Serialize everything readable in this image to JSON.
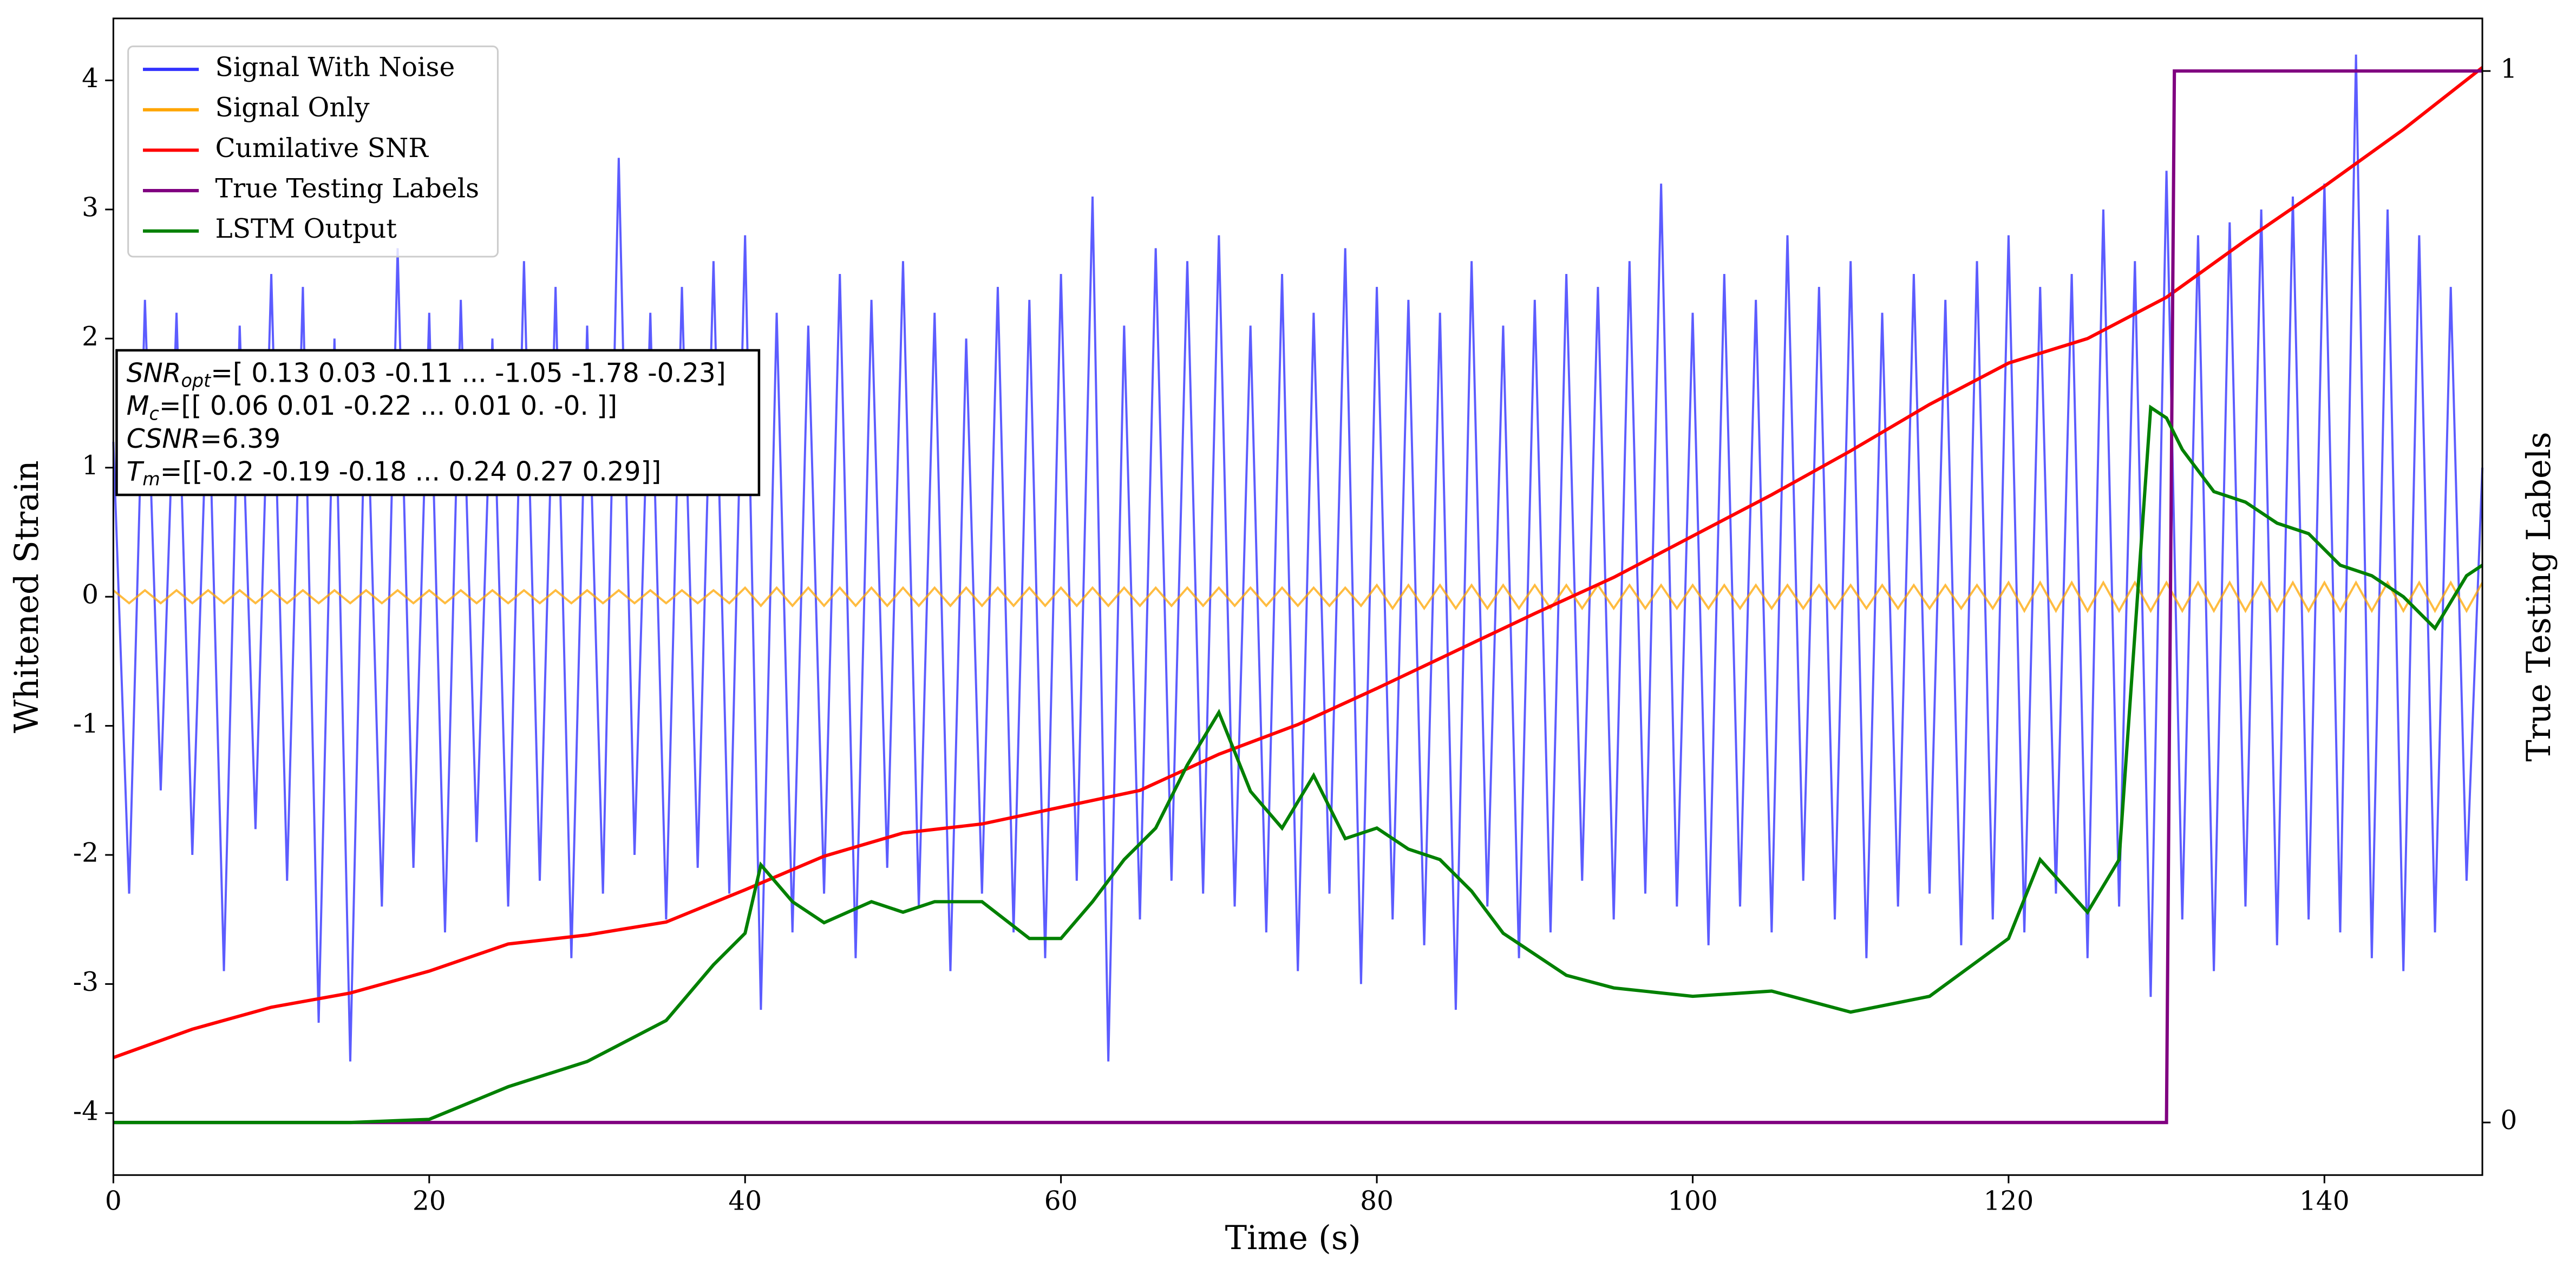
{
  "chart_data": {
    "type": "line",
    "xlabel": "Time (s)",
    "ylabel": "Whitened Strain",
    "y2label": "True Testing Labels",
    "xlim": [
      0,
      150
    ],
    "xticks": [
      0,
      20,
      40,
      60,
      80,
      100,
      120,
      140
    ],
    "ylim": [
      -4.48,
      4.48
    ],
    "yticks": [
      -4,
      -3,
      -2,
      -1,
      0,
      1,
      2,
      3,
      4
    ],
    "y2lim": [
      -0.05,
      1.05
    ],
    "y2ticks": [
      0,
      1
    ],
    "legend": "upper left",
    "annotation": [
      {
        "label": "SNR",
        "sub": "opt",
        "text": "=[ 0.13  0.03 -0.11 ... -1.05 -1.78 -0.23]"
      },
      {
        "label": "M",
        "sub": "c",
        "text": "=[[ 0.06  0.01 -0.22 ...  0.01  0.   -0.  ]]"
      },
      {
        "label": "CSNR",
        "text": "=6.39"
      },
      {
        "label": "T",
        "sub": "m",
        "text": "=[[-0.2  -0.19 -0.18 ...  0.24  0.27  0.29]]"
      }
    ],
    "series": [
      {
        "name": "Signal With Noise",
        "color": "#3333ff",
        "x": [
          0,
          1,
          2,
          3,
          4,
          5,
          6,
          7,
          8,
          9,
          10,
          11,
          12,
          13,
          14,
          15,
          16,
          17,
          18,
          19,
          20,
          21,
          22,
          23,
          24,
          25,
          26,
          27,
          28,
          29,
          30,
          31,
          32,
          33,
          34,
          35,
          36,
          37,
          38,
          39,
          40,
          41,
          42,
          43,
          44,
          45,
          46,
          47,
          48,
          49,
          50,
          51,
          52,
          53,
          54,
          55,
          56,
          57,
          58,
          59,
          60,
          61,
          62,
          63,
          64,
          65,
          66,
          67,
          68,
          69,
          70,
          71,
          72,
          73,
          74,
          75,
          76,
          77,
          78,
          79,
          80,
          81,
          82,
          83,
          84,
          85,
          86,
          87,
          88,
          89,
          90,
          91,
          92,
          93,
          94,
          95,
          96,
          97,
          98,
          99,
          100,
          101,
          102,
          103,
          104,
          105,
          106,
          107,
          108,
          109,
          110,
          111,
          112,
          113,
          114,
          115,
          116,
          117,
          118,
          119,
          120,
          121,
          122,
          123,
          124,
          125,
          126,
          127,
          128,
          129,
          130,
          131,
          132,
          133,
          134,
          135,
          136,
          137,
          138,
          139,
          140,
          141,
          142,
          143,
          144,
          145,
          146,
          147,
          148,
          149,
          150
        ],
        "values": [
          1.2,
          -2.3,
          2.3,
          -1.5,
          2.2,
          -2.0,
          1.8,
          -2.9,
          2.1,
          -1.8,
          2.5,
          -2.2,
          2.4,
          -3.3,
          2.0,
          -3.6,
          1.9,
          -2.4,
          2.7,
          -2.1,
          2.2,
          -2.6,
          2.3,
          -1.9,
          2.0,
          -2.4,
          2.6,
          -2.2,
          2.4,
          -2.8,
          2.1,
          -2.3,
          3.4,
          -2.0,
          2.2,
          -2.5,
          2.4,
          -2.1,
          2.6,
          -2.3,
          2.8,
          -3.2,
          2.2,
          -2.6,
          2.1,
          -2.3,
          2.5,
          -2.8,
          2.3,
          -2.1,
          2.6,
          -2.4,
          2.2,
          -2.9,
          2.0,
          -2.3,
          2.4,
          -2.6,
          2.3,
          -2.8,
          2.5,
          -2.2,
          3.1,
          -3.6,
          2.1,
          -2.5,
          2.7,
          -2.2,
          2.6,
          -2.3,
          2.8,
          -2.4,
          2.1,
          -2.6,
          2.5,
          -2.9,
          2.2,
          -2.3,
          2.7,
          -3.0,
          2.4,
          -2.5,
          2.3,
          -2.7,
          2.2,
          -3.2,
          2.6,
          -2.4,
          2.1,
          -2.8,
          2.3,
          -2.6,
          2.5,
          -2.2,
          2.4,
          -2.5,
          2.6,
          -2.3,
          3.2,
          -2.4,
          2.2,
          -2.7,
          2.5,
          -2.4,
          2.3,
          -2.6,
          2.8,
          -2.2,
          2.4,
          -2.5,
          2.6,
          -2.8,
          2.2,
          -2.4,
          2.5,
          -2.3,
          2.3,
          -2.7,
          2.6,
          -2.5,
          2.8,
          -2.6,
          2.4,
          -2.3,
          2.5,
          -2.8,
          3.0,
          -2.4,
          2.6,
          -3.1,
          3.3,
          -2.5,
          2.8,
          -2.9,
          2.9,
          -2.4,
          3.0,
          -2.7,
          3.1,
          -2.5,
          3.2,
          -2.6,
          4.2,
          -2.8,
          3.0,
          -2.9,
          2.8,
          -2.6,
          2.4,
          -2.2,
          1.0
        ]
      },
      {
        "name": "Signal Only",
        "color": "orange",
        "x": [
          0,
          1,
          2,
          3,
          4,
          5,
          6,
          7,
          8,
          9,
          10,
          11,
          12,
          13,
          14,
          15,
          16,
          17,
          18,
          19,
          20,
          21,
          22,
          23,
          24,
          25,
          26,
          27,
          28,
          29,
          30,
          31,
          32,
          33,
          34,
          35,
          36,
          37,
          38,
          39,
          40,
          41,
          42,
          43,
          44,
          45,
          46,
          47,
          48,
          49,
          50,
          51,
          52,
          53,
          54,
          55,
          56,
          57,
          58,
          59,
          60,
          61,
          62,
          63,
          64,
          65,
          66,
          67,
          68,
          69,
          70,
          71,
          72,
          73,
          74,
          75,
          76,
          77,
          78,
          79,
          80,
          81,
          82,
          83,
          84,
          85,
          86,
          87,
          88,
          89,
          90,
          91,
          92,
          93,
          94,
          95,
          96,
          97,
          98,
          99,
          100,
          101,
          102,
          103,
          104,
          105,
          106,
          107,
          108,
          109,
          110,
          111,
          112,
          113,
          114,
          115,
          116,
          117,
          118,
          119,
          120,
          121,
          122,
          123,
          124,
          125,
          126,
          127,
          128,
          129,
          130,
          131,
          132,
          133,
          134,
          135,
          136,
          137,
          138,
          139,
          140,
          141,
          142,
          143,
          144,
          145,
          146,
          147,
          148,
          149,
          150
        ],
        "values": [
          0.05,
          -0.05,
          0.05,
          -0.05,
          0.05,
          -0.05,
          0.05,
          -0.05,
          0.05,
          -0.05,
          0.05,
          -0.05,
          0.05,
          -0.05,
          0.05,
          -0.05,
          0.05,
          -0.05,
          0.05,
          -0.05,
          0.05,
          -0.05,
          0.05,
          -0.05,
          0.05,
          -0.05,
          0.05,
          -0.05,
          0.05,
          -0.05,
          0.05,
          -0.05,
          0.05,
          -0.05,
          0.05,
          -0.05,
          0.05,
          -0.05,
          0.05,
          -0.05,
          0.07,
          -0.07,
          0.07,
          -0.07,
          0.07,
          -0.07,
          0.07,
          -0.07,
          0.07,
          -0.07,
          0.07,
          -0.07,
          0.07,
          -0.07,
          0.07,
          -0.07,
          0.07,
          -0.07,
          0.07,
          -0.07,
          0.07,
          -0.07,
          0.07,
          -0.07,
          0.07,
          -0.07,
          0.07,
          -0.07,
          0.07,
          -0.07,
          0.07,
          -0.07,
          0.07,
          -0.07,
          0.07,
          -0.07,
          0.07,
          -0.07,
          0.07,
          -0.07,
          0.09,
          -0.09,
          0.09,
          -0.09,
          0.09,
          -0.09,
          0.09,
          -0.09,
          0.09,
          -0.09,
          0.09,
          -0.09,
          0.09,
          -0.09,
          0.09,
          -0.09,
          0.09,
          -0.09,
          0.09,
          -0.09,
          0.09,
          -0.09,
          0.09,
          -0.09,
          0.09,
          -0.09,
          0.09,
          -0.09,
          0.09,
          -0.09,
          0.09,
          -0.09,
          0.09,
          -0.09,
          0.09,
          -0.09,
          0.09,
          -0.09,
          0.09,
          -0.09,
          0.11,
          -0.11,
          0.11,
          -0.11,
          0.11,
          -0.11,
          0.11,
          -0.11,
          0.11,
          -0.11,
          0.11,
          -0.11,
          0.11,
          -0.11,
          0.11,
          -0.11,
          0.11,
          -0.11,
          0.11,
          -0.11,
          0.11,
          -0.11,
          0.11,
          -0.11,
          0.11,
          -0.11,
          0.11,
          -0.11,
          0.11,
          -0.11,
          0.11
        ]
      },
      {
        "name": "Cumilative SNR",
        "color": "red",
        "x": [
          0,
          5,
          10,
          15,
          20,
          25,
          30,
          35,
          40,
          45,
          50,
          55,
          60,
          65,
          70,
          75,
          80,
          85,
          90,
          95,
          100,
          105,
          110,
          115,
          120,
          125,
          130,
          135,
          140,
          145,
          150
        ],
        "values": [
          -3.57,
          -3.35,
          -3.18,
          -3.07,
          -2.9,
          -2.69,
          -2.62,
          -2.52,
          -2.27,
          -2.01,
          -1.83,
          -1.76,
          -1.63,
          -1.5,
          -1.22,
          -0.99,
          -0.71,
          -0.42,
          -0.13,
          0.15,
          0.47,
          0.79,
          1.13,
          1.49,
          1.81,
          2.0,
          2.32,
          2.76,
          3.18,
          3.62,
          4.1
        ]
      },
      {
        "name": "True Testing Labels",
        "color": "purple",
        "axis": "y2",
        "x": [
          0,
          130,
          130.5,
          150
        ],
        "values": [
          0,
          0,
          1,
          1
        ]
      },
      {
        "name": "LSTM Output",
        "color": "green",
        "axis": "y2",
        "x": [
          0,
          15,
          20,
          25,
          30,
          35,
          38,
          40,
          41,
          43,
          45,
          48,
          50,
          52,
          55,
          58,
          60,
          62,
          64,
          66,
          68,
          70,
          72,
          74,
          76,
          78,
          80,
          82,
          84,
          86,
          88,
          90,
          92,
          95,
          100,
          105,
          110,
          115,
          120,
          122,
          125,
          127,
          129,
          130,
          131,
          133,
          135,
          137,
          139,
          141,
          143,
          145,
          147,
          149,
          150
        ],
        "values": [
          0,
          0,
          0.003,
          0.034,
          0.058,
          0.097,
          0.15,
          0.18,
          0.245,
          0.21,
          0.19,
          0.21,
          0.2,
          0.21,
          0.21,
          0.175,
          0.175,
          0.21,
          0.25,
          0.28,
          0.34,
          0.39,
          0.315,
          0.28,
          0.33,
          0.27,
          0.28,
          0.26,
          0.25,
          0.22,
          0.18,
          0.16,
          0.14,
          0.128,
          0.12,
          0.125,
          0.105,
          0.12,
          0.175,
          0.25,
          0.2,
          0.25,
          0.68,
          0.67,
          0.64,
          0.6,
          0.59,
          0.57,
          0.56,
          0.53,
          0.52,
          0.5,
          0.47,
          0.52,
          0.53
        ]
      }
    ]
  }
}
